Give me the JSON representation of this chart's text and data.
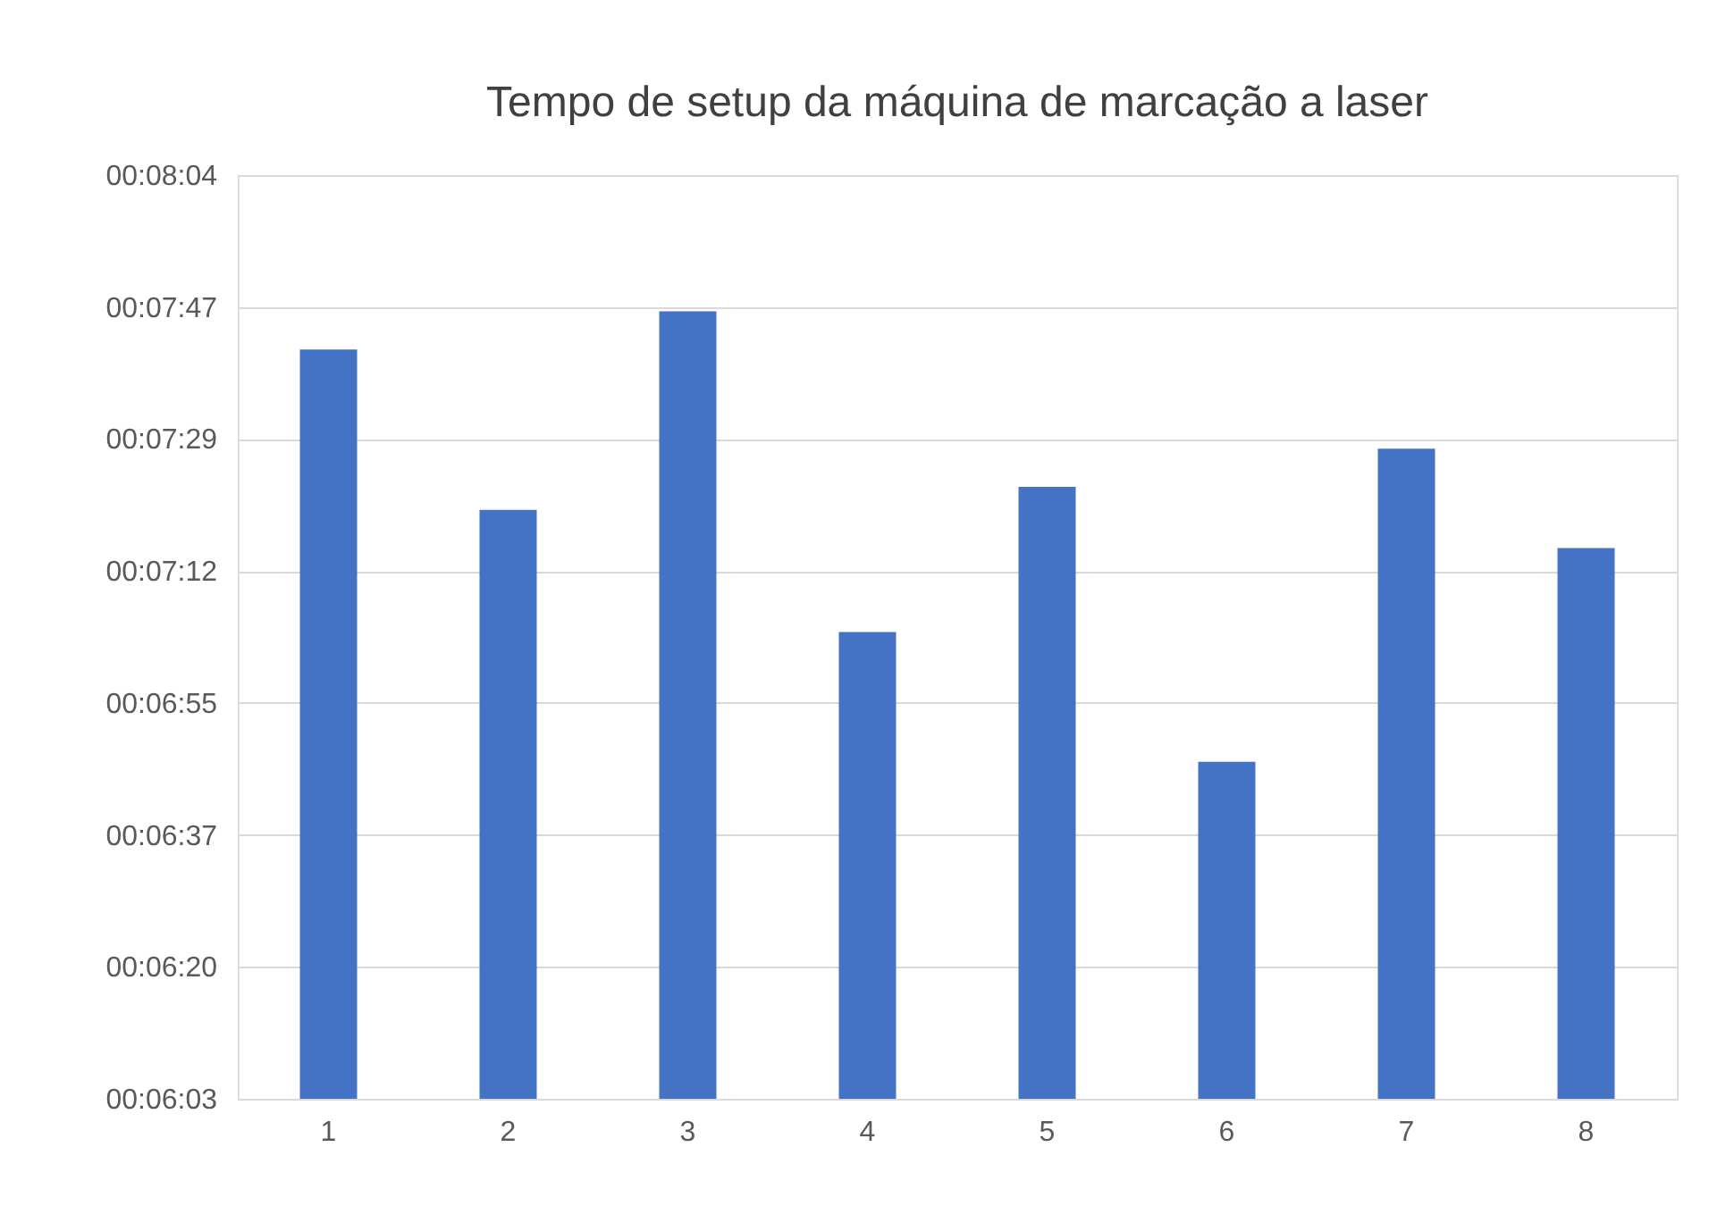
{
  "chart_data": {
    "type": "bar",
    "title": "Tempo de setup da máquina de marcação a laser",
    "categories": [
      "1",
      "2",
      "3",
      "4",
      "5",
      "6",
      "7",
      "8"
    ],
    "values": [
      461,
      440,
      466,
      424,
      443,
      407,
      448,
      435
    ],
    "color": "#4472c4",
    "ylim": [
      362.88,
      483.84
    ],
    "yticks": [
      {
        "value": 362.88,
        "label": "00:06:03"
      },
      {
        "value": 380.16,
        "label": "00:06:20"
      },
      {
        "value": 397.44,
        "label": "00:06:37"
      },
      {
        "value": 414.72,
        "label": "00:06:55"
      },
      {
        "value": 432.0,
        "label": "00:07:12"
      },
      {
        "value": 449.28,
        "label": "00:07:29"
      },
      {
        "value": 466.56,
        "label": "00:07:47"
      },
      {
        "value": 483.84,
        "label": "00:08:04"
      }
    ],
    "grid": "y"
  }
}
